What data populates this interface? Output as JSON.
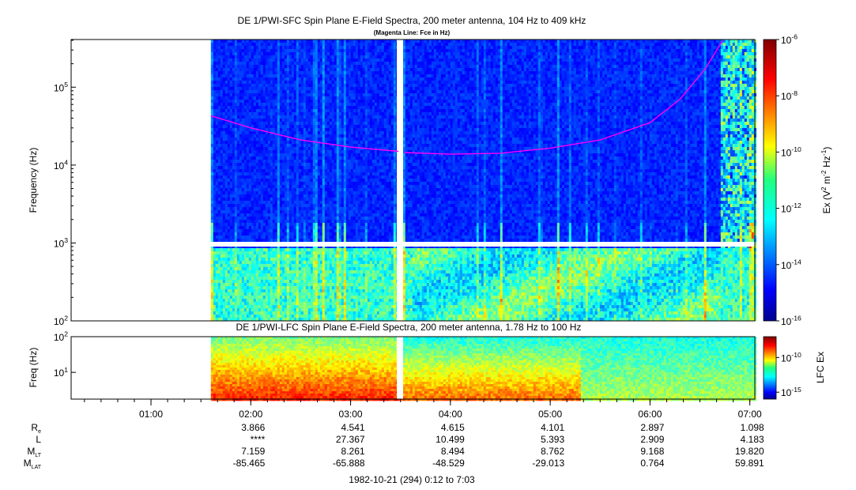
{
  "chart_data": [
    {
      "type": "heatmap",
      "title": "DE 1/PWI-SFC  Spin Plane E-Field Spectra, 200 meter antenna, 104 Hz to 409 kHz",
      "subtitle": "(Magenta Line: Fce in Hz)",
      "ylabel": "Frequency (Hz)",
      "yscale": "log",
      "ylim": [
        100,
        409000
      ],
      "yticks": [
        {
          "value": 100,
          "label": "10",
          "exp": "2"
        },
        {
          "value": 1000,
          "label": "10",
          "exp": "3"
        },
        {
          "value": 10000,
          "label": "10",
          "exp": "4"
        },
        {
          "value": 100000,
          "label": "10",
          "exp": "5"
        }
      ],
      "colorbar": {
        "label_parts": [
          "Ex (V",
          "2",
          " m",
          "-2",
          " Hz",
          "-1",
          ")"
        ],
        "scale": "log",
        "range": [
          1e-16,
          1e-06
        ],
        "ticks": [
          {
            "value": 1e-06,
            "label": "10",
            "exp": "-6"
          },
          {
            "value": 1e-08,
            "label": "10",
            "exp": "-8"
          },
          {
            "value": 1e-10,
            "label": "10",
            "exp": "-10"
          },
          {
            "value": 1e-12,
            "label": "10",
            "exp": "-12"
          },
          {
            "value": 1e-14,
            "label": "10",
            "exp": "-14"
          },
          {
            "value": 1e-16,
            "label": "10",
            "exp": "-16"
          }
        ]
      },
      "data_gaps": [
        {
          "start_hour": 3.48,
          "end_hour": 3.54
        }
      ],
      "fce_line": {
        "color": "#ff00ff",
        "segments": [
          [
            [
              1.6,
              43000
            ],
            [
              2.0,
              30000
            ],
            [
              2.5,
              21000
            ],
            [
              3.0,
              17000
            ],
            [
              3.48,
              15000
            ]
          ],
          [
            [
              3.54,
              14500
            ],
            [
              4.0,
              13800
            ],
            [
              4.5,
              14200
            ],
            [
              5.0,
              16500
            ],
            [
              5.5,
              21000
            ],
            [
              6.0,
              35000
            ],
            [
              6.3,
              70000
            ],
            [
              6.55,
              170000
            ],
            [
              6.73,
              400000
            ]
          ]
        ]
      }
    },
    {
      "type": "heatmap",
      "title": "DE 1/PWI-LFC  Spin Plane E-Field Spectra, 200 meter antenna, 1.78 Hz to 100 Hz",
      "ylabel": "Freq (Hz)",
      "yscale": "log",
      "ylim": [
        1.78,
        100
      ],
      "yticks": [
        {
          "value": 10,
          "label": "10",
          "exp": "1"
        },
        {
          "value": 100,
          "label": "10",
          "exp": "2"
        }
      ],
      "colorbar": {
        "label_parts": [
          "LFC Ex"
        ],
        "scale": "log",
        "range": [
          1e-16,
          1e-07
        ],
        "ticks": [
          {
            "value": 1e-10,
            "label": "10",
            "exp": "-10"
          },
          {
            "value": 1e-15,
            "label": "10",
            "exp": "-15"
          }
        ]
      }
    }
  ],
  "time_axis": {
    "range_hours": [
      0.2,
      7.05
    ],
    "ticks": [
      {
        "hour": 1,
        "label": "01:00"
      },
      {
        "hour": 2,
        "label": "02:00"
      },
      {
        "hour": 3,
        "label": "03:00"
      },
      {
        "hour": 4,
        "label": "04:00"
      },
      {
        "hour": 5,
        "label": "05:00"
      },
      {
        "hour": 6,
        "label": "06:00"
      },
      {
        "hour": 7,
        "label": "07:00"
      }
    ]
  },
  "data_start_hour": 1.6,
  "ephemeris": [
    {
      "label": "R",
      "sub": "e",
      "values": [
        "3.866",
        "4.541",
        "4.615",
        "4.101",
        "2.897",
        "1.098"
      ]
    },
    {
      "label": "L",
      "sub": "",
      "values": [
        "****",
        "27.367",
        "10.499",
        "5.393",
        "2.909",
        "4.183"
      ]
    },
    {
      "label": "M",
      "sub": "LT",
      "values": [
        "7.159",
        "8.261",
        "8.494",
        "8.762",
        "9.168",
        "19.820"
      ]
    },
    {
      "label": "M",
      "sub": "LAT",
      "values": [
        "-85.465",
        "-65.888",
        "-48.529",
        "-29.013",
        "0.764",
        "59.891"
      ]
    }
  ],
  "footer": "1982-10-21 (294) 0:12 to 7:03",
  "colors": {
    "fce": "#ff00ff",
    "gap": "#ffffff"
  }
}
